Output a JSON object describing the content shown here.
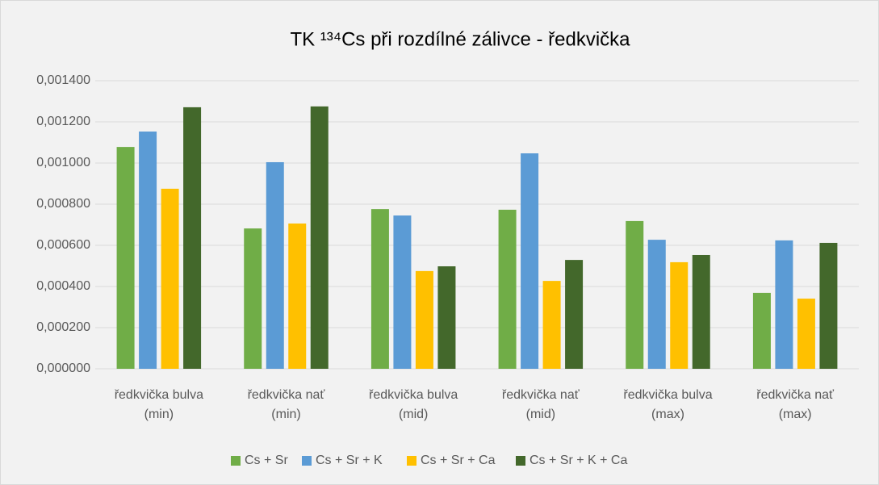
{
  "chart_data": {
    "type": "bar",
    "title": "TK ¹³⁴Cs při rozdílné zálivce - ředkvička",
    "categories": [
      "ředkvička bulva\n(min)",
      "ředkvička nať\n(min)",
      "ředkvička bulva\n(mid)",
      "ředkvička nať\n(mid)",
      "ředkvička bulva\n(max)",
      "ředkvička nať\n(max)"
    ],
    "series": [
      {
        "name": "Cs + Sr",
        "color": "#70ad47",
        "values": [
          0.001078,
          0.000682,
          0.000776,
          0.000773,
          0.000718,
          0.000369
        ]
      },
      {
        "name": "Cs + Sr + K",
        "color": "#5b9bd5",
        "values": [
          0.001153,
          0.001004,
          0.000745,
          0.001047,
          0.000627,
          0.000624
        ]
      },
      {
        "name": "Cs + Sr + Ca",
        "color": "#ffc000",
        "values": [
          0.000875,
          0.000706,
          0.000475,
          0.000427,
          0.000518,
          0.000341
        ]
      },
      {
        "name": "Cs + Sr + K + Ca",
        "color": "#43682b",
        "values": [
          0.001271,
          0.001275,
          0.000498,
          0.000529,
          0.000553,
          0.000612
        ]
      }
    ],
    "ylim": [
      0,
      0.0014
    ],
    "yticks": [
      {
        "value": 0,
        "label": "0,000000"
      },
      {
        "value": 0.0002,
        "label": "0,000200"
      },
      {
        "value": 0.0004,
        "label": "0,000400"
      },
      {
        "value": 0.0006,
        "label": "0,000600"
      },
      {
        "value": 0.0008,
        "label": "0,000800"
      },
      {
        "value": 0.001,
        "label": "0,001000"
      },
      {
        "value": 0.0012,
        "label": "0,001200"
      },
      {
        "value": 0.0014,
        "label": "0,001400"
      }
    ],
    "grid": true,
    "legend": "bottom"
  }
}
